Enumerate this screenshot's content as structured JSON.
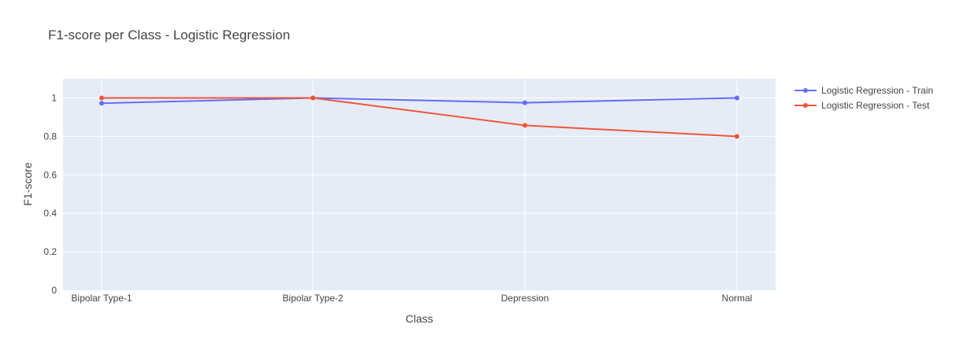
{
  "chart_data": {
    "type": "line",
    "title": "F1-score per Class - Logistic Regression",
    "xlabel": "Class",
    "ylabel": "F1-score",
    "categories": [
      "Bipolar Type-1",
      "Bipolar Type-2",
      "Depression",
      "Normal"
    ],
    "ylim": [
      0,
      1.1
    ],
    "yticks": [
      0,
      0.2,
      0.4,
      0.6,
      0.8,
      1
    ],
    "ytick_labels": [
      "0",
      "0.2",
      "0.4",
      "0.6",
      "0.8",
      "1"
    ],
    "grid": true,
    "legend_position": "top-right, outside plot",
    "series": [
      {
        "name": "Logistic Regression - Train",
        "color": "#636efa",
        "values": [
          0.972,
          1.0,
          0.975,
          1.0
        ]
      },
      {
        "name": "Logistic Regression - Test",
        "color": "#ef553b",
        "values": [
          1.0,
          1.0,
          0.857,
          0.8
        ]
      }
    ],
    "plot_background": "#e5ecf6"
  }
}
